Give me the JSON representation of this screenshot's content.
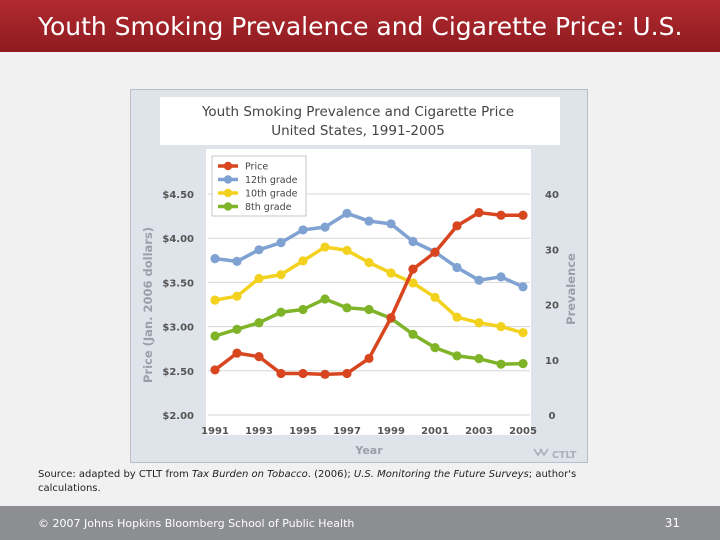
{
  "slide": {
    "title": "Youth Smoking Prevalence and Cigarette Price: U.S.",
    "footer_copyright": "© 2007 Johns Hopkins Bloomberg School of Public Health",
    "page_number": "31",
    "colors": {
      "title_bar": "#a72329",
      "footer_bar": "#8d8e92",
      "chart_panel": "#dfe3ea"
    }
  },
  "source": {
    "prefix": "Source: adapted by CTLT from ",
    "work1": "Tax Burden on Tobacco",
    "middle": ". (2006); ",
    "work2": "U.S. Monitoring the Future Surveys",
    "suffix": "; author's calculations."
  },
  "logo_text": "CTLT",
  "chart_data": {
    "type": "line",
    "title_line1": "Youth Smoking Prevalence and Cigarette Price",
    "title_line2": "United States, 1991-2005",
    "xlabel": "Year",
    "ylabel_left": "Price (Jan. 2006 dollars)",
    "ylabel_right": "Prevalence",
    "x": [
      1991,
      1992,
      1993,
      1994,
      1995,
      1996,
      1997,
      1998,
      1999,
      2000,
      2001,
      2002,
      2003,
      2004,
      2005
    ],
    "x_tick_labels": [
      "1991",
      "1993",
      "1995",
      "1997",
      "1999",
      "2001",
      "2003",
      "2005"
    ],
    "left_axis": {
      "min": 2.0,
      "max": 4.5,
      "ticks": [
        "$2.00",
        "$2.50",
        "$3.00",
        "$3.50",
        "$4.00",
        "$4.50"
      ]
    },
    "right_axis": {
      "min": 0,
      "max": 40,
      "ticks": [
        "0",
        "10",
        "20",
        "30",
        "40"
      ]
    },
    "legend_position": "top-left",
    "series": [
      {
        "name": "Price",
        "axis": "left",
        "color": "#d8461f",
        "values": [
          2.51,
          2.7,
          2.66,
          2.47,
          2.47,
          2.46,
          2.47,
          2.64,
          3.1,
          3.65,
          3.84,
          4.14,
          4.29,
          4.26,
          4.26
        ]
      },
      {
        "name": "12th grade",
        "axis": "right",
        "color": "#7fa2d2",
        "values": [
          28.3,
          27.8,
          29.9,
          31.2,
          33.5,
          34.0,
          36.5,
          35.1,
          34.6,
          31.4,
          29.5,
          26.7,
          24.4,
          25.0,
          23.2
        ]
      },
      {
        "name": "10th grade",
        "axis": "right",
        "color": "#f2d21e",
        "values": [
          20.8,
          21.5,
          24.7,
          25.4,
          27.9,
          30.4,
          29.8,
          27.6,
          25.7,
          23.9,
          21.3,
          17.7,
          16.7,
          16.0,
          14.9
        ]
      },
      {
        "name": "8th grade",
        "axis": "right",
        "color": "#7fb429",
        "values": [
          14.3,
          15.5,
          16.7,
          18.6,
          19.1,
          21.0,
          19.4,
          19.1,
          17.5,
          14.6,
          12.2,
          10.7,
          10.2,
          9.2,
          9.3
        ]
      }
    ]
  }
}
